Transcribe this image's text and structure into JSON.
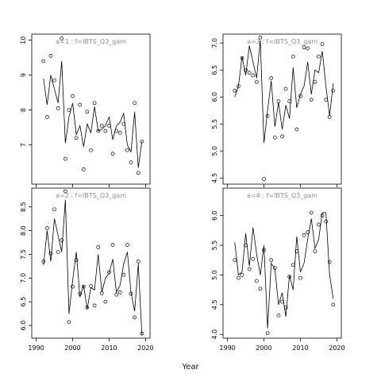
{
  "figure": {
    "xlabel": "Year",
    "line_color": "#000000",
    "point_color": "#000000",
    "panel_title_color": "#8c8c8c",
    "background": "#ffffff"
  },
  "chart_data": [
    {
      "type": "line",
      "title": "a=1  :  f=IBTS_Q3_gam",
      "xlim": [
        1989,
        2021
      ],
      "ylim": [
        5.9,
        10.15
      ],
      "xticks": [
        1990,
        2000,
        2010,
        2020
      ],
      "yticks": [
        7,
        8,
        9,
        10
      ],
      "show_xtick_labels": false,
      "show_ytick_labels": true,
      "series": [
        {
          "kind": "line",
          "x": [
            1992,
            1993,
            1994,
            1995,
            1996,
            1997,
            1998,
            1999,
            2000,
            2001,
            2002,
            2003,
            2004,
            2005,
            2006,
            2007,
            2008,
            2009,
            2010,
            2011,
            2012,
            2013,
            2014,
            2015,
            2016,
            2017,
            2018,
            2019
          ],
          "y": [
            8.9,
            8.15,
            9.0,
            8.6,
            8.2,
            9.4,
            7.05,
            7.8,
            8.2,
            7.3,
            7.55,
            6.95,
            7.6,
            7.35,
            8.1,
            7.4,
            7.45,
            7.55,
            7.8,
            7.15,
            7.55,
            7.65,
            7.9,
            7.0,
            6.8,
            7.95,
            6.35,
            7.1
          ]
        },
        {
          "kind": "points",
          "x": [
            1992,
            1993,
            1994,
            1995,
            1996,
            1997,
            1998,
            1999,
            2000,
            2001,
            2002,
            2003,
            2004,
            2005,
            2006,
            2007,
            2008,
            2009,
            2010,
            2011,
            2012,
            2013,
            2014,
            2015,
            2016,
            2017,
            2018,
            2019
          ],
          "y": [
            9.4,
            7.8,
            9.55,
            8.85,
            8.05,
            10.05,
            6.6,
            8.0,
            8.4,
            7.2,
            8.15,
            6.3,
            7.95,
            6.85,
            8.2,
            7.4,
            7.55,
            7.4,
            7.55,
            6.75,
            7.4,
            7.35,
            7.6,
            6.85,
            6.5,
            8.2,
            6.2,
            7.1
          ]
        }
      ]
    },
    {
      "type": "line",
      "title": "a=3  :  f=IBTS_Q3_gam",
      "xlim": [
        1989,
        2021
      ],
      "ylim": [
        4.4,
        7.15
      ],
      "xticks": [
        1990,
        2000,
        2010,
        2020
      ],
      "yticks": [
        4.5,
        5.0,
        5.5,
        6.0,
        6.5,
        7.0
      ],
      "show_xtick_labels": false,
      "show_ytick_labels": true,
      "series": [
        {
          "kind": "line",
          "x": [
            1992,
            1993,
            1994,
            1995,
            1996,
            1997,
            1998,
            1999,
            2000,
            2001,
            2002,
            2003,
            2004,
            2005,
            2006,
            2007,
            2008,
            2009,
            2010,
            2011,
            2012,
            2013,
            2014,
            2015,
            2016,
            2017,
            2018,
            2019
          ],
          "y": [
            6.0,
            6.2,
            6.75,
            6.4,
            6.95,
            6.65,
            6.35,
            7.05,
            5.15,
            5.75,
            6.3,
            5.45,
            5.9,
            5.4,
            5.85,
            5.6,
            6.55,
            5.8,
            6.05,
            6.2,
            6.65,
            6.05,
            6.5,
            6.45,
            6.85,
            6.2,
            5.65,
            6.25
          ]
        },
        {
          "kind": "points",
          "x": [
            1992,
            1993,
            1994,
            1995,
            1996,
            1997,
            1998,
            1999,
            2000,
            2001,
            2002,
            2003,
            2004,
            2005,
            2006,
            2007,
            2008,
            2009,
            2010,
            2011,
            2012,
            2013,
            2014,
            2015,
            2016,
            2017,
            2018,
            2019
          ],
          "y": [
            6.12,
            6.2,
            6.72,
            6.5,
            6.45,
            6.4,
            6.28,
            7.1,
            4.48,
            5.65,
            6.35,
            5.25,
            5.92,
            5.27,
            6.15,
            5.92,
            6.75,
            5.4,
            6.02,
            6.92,
            6.9,
            5.95,
            6.28,
            6.75,
            6.98,
            5.95,
            5.63,
            6.12
          ]
        }
      ]
    },
    {
      "type": "line",
      "title": "a=2  :  f=IBTS_Q3_gam",
      "xlim": [
        1989,
        2021
      ],
      "ylim": [
        5.75,
        8.88
      ],
      "xticks": [
        1990,
        2000,
        2010,
        2020
      ],
      "yticks": [
        6.0,
        6.5,
        7.0,
        7.5,
        8.0,
        8.5
      ],
      "show_xtick_labels": true,
      "show_ytick_labels": true,
      "series": [
        {
          "kind": "line",
          "x": [
            1992,
            1993,
            1994,
            1995,
            1996,
            1997,
            1998,
            1999,
            2000,
            2001,
            2002,
            2003,
            2004,
            2005,
            2006,
            2007,
            2008,
            2009,
            2010,
            2011,
            2012,
            2013,
            2014,
            2015,
            2016,
            2017,
            2018,
            2019
          ],
          "y": [
            7.27,
            8.0,
            7.35,
            8.25,
            7.9,
            7.55,
            8.65,
            6.25,
            6.95,
            7.55,
            6.6,
            6.85,
            6.35,
            6.8,
            6.75,
            7.5,
            6.7,
            7.0,
            7.1,
            7.4,
            6.7,
            6.85,
            7.3,
            7.55,
            6.7,
            6.3,
            7.3,
            5.8
          ]
        },
        {
          "kind": "points",
          "x": [
            1992,
            1993,
            1994,
            1995,
            1996,
            1997,
            1998,
            1999,
            2000,
            2001,
            2002,
            2003,
            2004,
            2005,
            2006,
            2007,
            2008,
            2009,
            2010,
            2011,
            2012,
            2013,
            2014,
            2015,
            2016,
            2017,
            2018,
            2019
          ],
          "y": [
            7.35,
            8.05,
            7.52,
            8.45,
            7.55,
            7.8,
            8.83,
            6.07,
            6.82,
            7.38,
            6.67,
            6.82,
            6.38,
            6.83,
            6.42,
            7.65,
            6.68,
            6.5,
            7.12,
            7.7,
            6.65,
            6.7,
            7.07,
            7.7,
            6.67,
            6.17,
            7.35,
            5.83
          ]
        }
      ]
    },
    {
      "type": "line",
      "title": "a=4  :  f=IBTS_Q3_gam",
      "xlim": [
        1989,
        2021
      ],
      "ylim": [
        3.95,
        6.45
      ],
      "xticks": [
        1990,
        2000,
        2010,
        2020
      ],
      "yticks": [
        4.0,
        4.5,
        5.0,
        5.5,
        6.0
      ],
      "show_xtick_labels": true,
      "show_ytick_labels": true,
      "series": [
        {
          "kind": "line",
          "x": [
            1992,
            1993,
            1994,
            1995,
            1996,
            1997,
            1998,
            1999,
            2000,
            2001,
            2002,
            2003,
            2004,
            2005,
            2006,
            2007,
            2008,
            2009,
            2010,
            2011,
            2012,
            2013,
            2014,
            2015,
            2016,
            2017,
            2018,
            2019
          ],
          "y": [
            5.55,
            5.0,
            5.05,
            5.7,
            5.15,
            5.8,
            5.35,
            5.0,
            5.5,
            4.1,
            5.2,
            5.1,
            4.5,
            4.7,
            4.3,
            5.0,
            4.75,
            5.65,
            5.05,
            5.2,
            5.6,
            5.95,
            5.45,
            5.6,
            6.05,
            6.05,
            5.0,
            4.6
          ]
        },
        {
          "kind": "points",
          "x": [
            1992,
            1993,
            1994,
            1995,
            1996,
            1997,
            1998,
            1999,
            2000,
            2001,
            2002,
            2003,
            2004,
            2005,
            2006,
            2007,
            2008,
            2009,
            2010,
            2011,
            2012,
            2013,
            2014,
            2015,
            2016,
            2017,
            2018,
            2019
          ],
          "y": [
            5.25,
            4.95,
            5.0,
            5.5,
            5.1,
            5.27,
            4.9,
            4.77,
            5.42,
            4.02,
            5.25,
            5.12,
            4.32,
            4.55,
            4.45,
            4.97,
            5.17,
            5.4,
            4.95,
            5.67,
            5.72,
            6.05,
            5.4,
            5.85,
            6.0,
            5.9,
            5.22,
            4.5
          ]
        }
      ]
    }
  ]
}
